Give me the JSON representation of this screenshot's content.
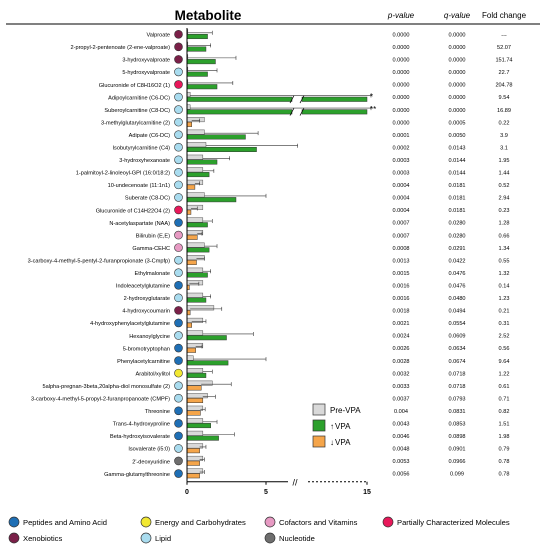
{
  "header": {
    "metabolite": "Metabolite",
    "p_value": "p-value",
    "q_value": "q-value",
    "fold_change": "Fold change"
  },
  "axis": {
    "ticks": [
      "0",
      "5",
      "15"
    ],
    "break_marker": "//"
  },
  "colors": {
    "pre_vpa": "#d9d9d9",
    "vpa_up": "#2ca02c",
    "vpa_down": "#f5a54a",
    "error_bar": "#333333",
    "peptides_amino_acid": "#1f6fb5",
    "energy_carbohydrates": "#f2e832",
    "cofactors_vitamins": "#e79ac3",
    "partially_characterized": "#e8185a",
    "xenobiotics": "#7a2048",
    "lipid": "#a9dcef",
    "nucleotide": "#6e6e6e"
  },
  "legend_bars": [
    {
      "key": "pre",
      "label": "Pre-VPA",
      "prefix": ""
    },
    {
      "key": "up",
      "label": "VPA",
      "prefix": "↑"
    },
    {
      "key": "down",
      "label": "VPA",
      "prefix": "↓"
    }
  ],
  "legend_classes": [
    {
      "key": "peptides_amino_acid",
      "label": "Peptides and Amino Acid"
    },
    {
      "key": "energy_carbohydrates",
      "label": "Energy and Carbohydrates"
    },
    {
      "key": "cofactors_vitamins",
      "label": "Cofactors and Vitamins"
    },
    {
      "key": "partially_characterized",
      "label": "Partially Characterized Molecules"
    },
    {
      "key": "xenobiotics",
      "label": "Xenobiotics"
    },
    {
      "key": "lipid",
      "label": "Lipid"
    },
    {
      "key": "nucleotide",
      "label": "Nucleotide"
    }
  ],
  "chart_data": {
    "type": "bar",
    "orientation": "horizontal",
    "axis_range": [
      0,
      15
    ],
    "axis_break": [
      7,
      14
    ],
    "series_names": [
      "Pre-VPA",
      "VPA"
    ],
    "rows": [
      {
        "name": "Valproate",
        "cls": "xenobiotics",
        "pre": 0.05,
        "vpa": 1.3,
        "dir": "up",
        "err": 0.3,
        "p": "0.0000",
        "q": "0.0000",
        "fc": "---",
        "star": ""
      },
      {
        "name": "2-propyl-2-pentenoate (2-ene-valproate)",
        "cls": "xenobiotics",
        "pre": 0.05,
        "vpa": 1.2,
        "dir": "up",
        "err": 0.3,
        "p": "0.0000",
        "q": "0.0000",
        "fc": "52.07",
        "star": ""
      },
      {
        "name": "3-hydroxyvalproate",
        "cls": "xenobiotics",
        "pre": 0.05,
        "vpa": 1.8,
        "dir": "up",
        "err": 1.3,
        "p": "0.0000",
        "q": "0.0000",
        "fc": "151.74",
        "star": ""
      },
      {
        "name": "5-hydroxyvalproate",
        "cls": "lipid",
        "pre": 0.05,
        "vpa": 1.3,
        "dir": "up",
        "err": 0.6,
        "p": "0.0000",
        "q": "0.0000",
        "fc": "22.7",
        "star": ""
      },
      {
        "name": "Glucuronide of C8H16O2 (1)",
        "cls": "partially_characterized",
        "pre": 0.05,
        "vpa": 1.9,
        "dir": "up",
        "err": 1.0,
        "p": "0.0000",
        "q": "0.0000",
        "fc": "204.78",
        "star": ""
      },
      {
        "name": "Adipoylcarnitine (C6-DC)",
        "cls": "lipid",
        "pre": 0.2,
        "vpa": 15.0,
        "dir": "up",
        "err": 0.4,
        "p": "0.0000",
        "q": "0.0000",
        "fc": "9.54",
        "star": "*"
      },
      {
        "name": "Suberoylcarnitine (C8-DC)",
        "cls": "lipid",
        "pre": 0.2,
        "vpa": 15.0,
        "dir": "up",
        "err": 0.4,
        "p": "0.0000",
        "q": "0.0000",
        "fc": "16.89",
        "star": "**"
      },
      {
        "name": "3-methylglutarylcarnitine (2)",
        "cls": "lipid",
        "pre": 1.1,
        "vpa": 0.3,
        "dir": "down",
        "err": 0.5,
        "p": "0.0000",
        "q": "0.0005",
        "fc": "0.22",
        "star": ""
      },
      {
        "name": "Adipate (C6-DC)",
        "cls": "lipid",
        "pre": 1.1,
        "vpa": 3.7,
        "dir": "up",
        "err": 0.8,
        "p": "0.0001",
        "q": "0.0050",
        "fc": "3.9",
        "star": ""
      },
      {
        "name": "Isobutyrylcarnitine (C4)",
        "cls": "lipid",
        "pre": 1.2,
        "vpa": 4.4,
        "dir": "up",
        "err": 2.6,
        "p": "0.0002",
        "q": "0.0143",
        "fc": "3.1",
        "star": ""
      },
      {
        "name": "3-hydroxyhexanoate",
        "cls": "lipid",
        "pre": 1.0,
        "vpa": 1.9,
        "dir": "up",
        "err": 0.8,
        "p": "0.0003",
        "q": "0.0144",
        "fc": "1.95",
        "star": ""
      },
      {
        "name": "1-palmitoyl-2-linoleoyl-GPI (16:0/18:2)",
        "cls": "lipid",
        "pre": 1.0,
        "vpa": 1.4,
        "dir": "up",
        "err": 0.3,
        "p": "0.0003",
        "q": "0.0144",
        "fc": "1.44",
        "star": ""
      },
      {
        "name": "10-undecenoate (11:1n1)",
        "cls": "lipid",
        "pre": 1.0,
        "vpa": 0.5,
        "dir": "down",
        "err": 0.3,
        "p": "0.0004",
        "q": "0.0181",
        "fc": "0.52",
        "star": ""
      },
      {
        "name": "Suberate (C8-DC)",
        "cls": "lipid",
        "pre": 1.1,
        "vpa": 3.1,
        "dir": "up",
        "err": 1.9,
        "p": "0.0004",
        "q": "0.0181",
        "fc": "2.94",
        "star": ""
      },
      {
        "name": "Glucuronide of C14H22O4 (2)",
        "cls": "partially_characterized",
        "pre": 1.0,
        "vpa": 0.25,
        "dir": "down",
        "err": 0.4,
        "p": "0.0004",
        "q": "0.0181",
        "fc": "0.23",
        "star": ""
      },
      {
        "name": "N-acetylaspartate (NAA)",
        "cls": "peptides_amino_acid",
        "pre": 1.0,
        "vpa": 1.3,
        "dir": "up",
        "err": 0.3,
        "p": "0.0007",
        "q": "0.0280",
        "fc": "1.28",
        "star": ""
      },
      {
        "name": "Bilirubin (E,E)",
        "cls": "cofactors_vitamins",
        "pre": 1.0,
        "vpa": 0.65,
        "dir": "down",
        "err": 0.3,
        "p": "0.0007",
        "q": "0.0280",
        "fc": "0.66",
        "star": ""
      },
      {
        "name": "Gamma-CEHC",
        "cls": "cofactors_vitamins",
        "pre": 1.1,
        "vpa": 1.4,
        "dir": "up",
        "err": 0.5,
        "p": "0.0008",
        "q": "0.0291",
        "fc": "1.34",
        "star": ""
      },
      {
        "name": "3-carboxy-4-methyl-5-pentyl-2-furanpropionate (3-Cmpfp)",
        "cls": "lipid",
        "pre": 1.1,
        "vpa": 0.6,
        "dir": "down",
        "err": 0.5,
        "p": "0.0013",
        "q": "0.0422",
        "fc": "0.55",
        "star": ""
      },
      {
        "name": "Ethylmalonate",
        "cls": "lipid",
        "pre": 1.0,
        "vpa": 1.3,
        "dir": "up",
        "err": 0.2,
        "p": "0.0015",
        "q": "0.0476",
        "fc": "1.32",
        "star": ""
      },
      {
        "name": "Indoleacetylglutamine",
        "cls": "peptides_amino_acid",
        "pre": 1.0,
        "vpa": 0.15,
        "dir": "down",
        "err": 0.6,
        "p": "0.0016",
        "q": "0.0476",
        "fc": "0.14",
        "star": ""
      },
      {
        "name": "2-hydroxyglutarate",
        "cls": "lipid",
        "pre": 1.0,
        "vpa": 1.2,
        "dir": "up",
        "err": 0.3,
        "p": "0.0016",
        "q": "0.0480",
        "fc": "1.23",
        "star": ""
      },
      {
        "name": "4-hydroxycoumarin",
        "cls": "xenobiotics",
        "pre": 1.7,
        "vpa": 0.2,
        "dir": "down",
        "err": 2.0,
        "p": "0.0018",
        "q": "0.0494",
        "fc": "0.21",
        "star": ""
      },
      {
        "name": "4-hydroxyphenylacetylglutamine",
        "cls": "peptides_amino_acid",
        "pre": 1.0,
        "vpa": 0.3,
        "dir": "down",
        "err": 0.9,
        "p": "0.0021",
        "q": "0.0554",
        "fc": "0.31",
        "star": ""
      },
      {
        "name": "Hexanoylglycine",
        "cls": "lipid",
        "pre": 1.0,
        "vpa": 2.5,
        "dir": "up",
        "err": 1.7,
        "p": "0.0024",
        "q": "0.0609",
        "fc": "2.52",
        "star": ""
      },
      {
        "name": "5-bromotryptophan",
        "cls": "peptides_amino_acid",
        "pre": 1.0,
        "vpa": 0.55,
        "dir": "down",
        "err": 0.4,
        "p": "0.0026",
        "q": "0.0634",
        "fc": "0.56",
        "star": ""
      },
      {
        "name": "Phenylacetylcarnitine",
        "cls": "peptides_amino_acid",
        "pre": 0.4,
        "vpa": 2.6,
        "dir": "up",
        "err": 2.4,
        "p": "0.0028",
        "q": "0.0674",
        "fc": "9.64",
        "star": ""
      },
      {
        "name": "Arabitol/xylitol",
        "cls": "energy_carbohydrates",
        "pre": 1.0,
        "vpa": 1.2,
        "dir": "up",
        "err": 0.4,
        "p": "0.0032",
        "q": "0.0718",
        "fc": "1.22",
        "star": ""
      },
      {
        "name": "5alpha-pregnan-3beta,20alpha-diol monosulfate (2)",
        "cls": "lipid",
        "pre": 1.6,
        "vpa": 0.9,
        "dir": "down",
        "err": 1.9,
        "p": "0.0033",
        "q": "0.0718",
        "fc": "0.61",
        "star": ""
      },
      {
        "name": "3-carboxy-4-methyl-5-propyl-2-furanpropanoate (CMPF)",
        "cls": "lipid",
        "pre": 1.3,
        "vpa": 1.0,
        "dir": "down",
        "err": 0.8,
        "p": "0.0037",
        "q": "0.0793",
        "fc": "0.71",
        "star": ""
      },
      {
        "name": "Threonine",
        "cls": "peptides_amino_acid",
        "pre": 1.0,
        "vpa": 0.85,
        "dir": "down",
        "err": 0.3,
        "p": "0.004",
        "q": "0.0831",
        "fc": "0.82",
        "star": ""
      },
      {
        "name": "Trans-4-hydroxyproline",
        "cls": "peptides_amino_acid",
        "pre": 1.0,
        "vpa": 1.5,
        "dir": "up",
        "err": 0.4,
        "p": "0.0043",
        "q": "0.0853",
        "fc": "1.51",
        "star": ""
      },
      {
        "name": "Beta-hydroxyisovalerate",
        "cls": "peptides_amino_acid",
        "pre": 1.0,
        "vpa": 2.0,
        "dir": "up",
        "err": 1.0,
        "p": "0.0046",
        "q": "0.0898",
        "fc": "1.98",
        "star": ""
      },
      {
        "name": "Isovalerate (i5:0)",
        "cls": "lipid",
        "pre": 1.0,
        "vpa": 0.8,
        "dir": "down",
        "err": 0.4,
        "p": "0.0048",
        "q": "0.0901",
        "fc": "0.79",
        "star": ""
      },
      {
        "name": "2'-deoxyuridine",
        "cls": "nucleotide",
        "pre": 1.0,
        "vpa": 0.8,
        "dir": "down",
        "err": 0.3,
        "p": "0.0053",
        "q": "0.0966",
        "fc": "0.78",
        "star": ""
      },
      {
        "name": "Gamma-glutamylthreonine",
        "cls": "peptides_amino_acid",
        "pre": 1.0,
        "vpa": 0.8,
        "dir": "down",
        "err": 0.3,
        "p": "0.0056",
        "q": "0.099",
        "fc": "0.78",
        "star": ""
      }
    ]
  }
}
